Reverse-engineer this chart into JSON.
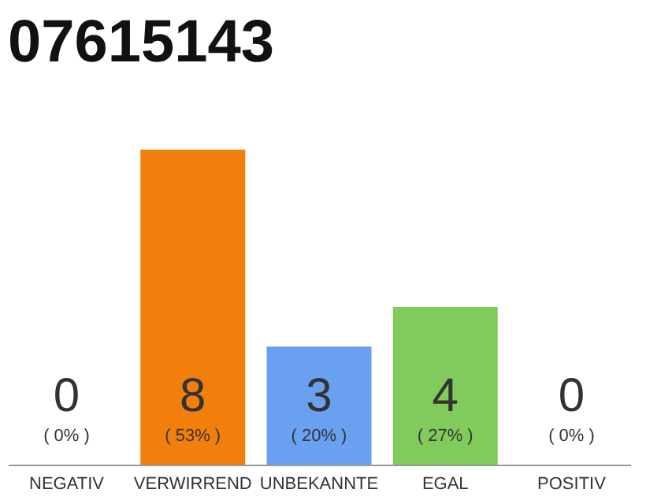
{
  "chart_data": {
    "type": "bar",
    "title": "07615143",
    "categories": [
      "NEGATIV",
      "VERWIRREND",
      "UNBEKANNTE",
      "EGAL",
      "POSITIV"
    ],
    "values": [
      0,
      8,
      3,
      4,
      0
    ],
    "colors": [
      "#f0f0f0",
      "#f27f0c",
      "#6aa0f0",
      "#80cb5c",
      "#f0f0f0"
    ],
    "data_labels": true,
    "annotations": [
      "( 0% )",
      "( 53% )",
      "( 20% )",
      "( 27% )",
      "( 0% )"
    ]
  }
}
